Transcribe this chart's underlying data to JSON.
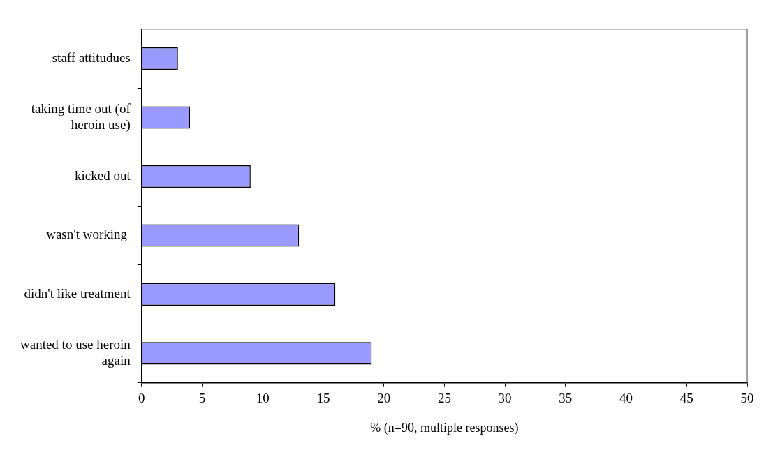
{
  "chart_data": {
    "type": "bar",
    "orientation": "horizontal",
    "xlabel": "% (n=90, multiple responses)",
    "categories": [
      "staff attitudues",
      "taking time out (of heroin use)",
      "kicked out",
      "wasn't working ",
      "didn't like treatment",
      "wanted to use heroin again"
    ],
    "values": [
      3,
      4,
      9,
      13,
      16,
      19
    ],
    "color": "#9999ff",
    "xlim": [
      0,
      50
    ],
    "xticks": [
      0,
      5,
      10,
      15,
      20,
      25,
      30,
      35,
      40,
      45,
      50
    ],
    "grid": false,
    "legend": false
  }
}
